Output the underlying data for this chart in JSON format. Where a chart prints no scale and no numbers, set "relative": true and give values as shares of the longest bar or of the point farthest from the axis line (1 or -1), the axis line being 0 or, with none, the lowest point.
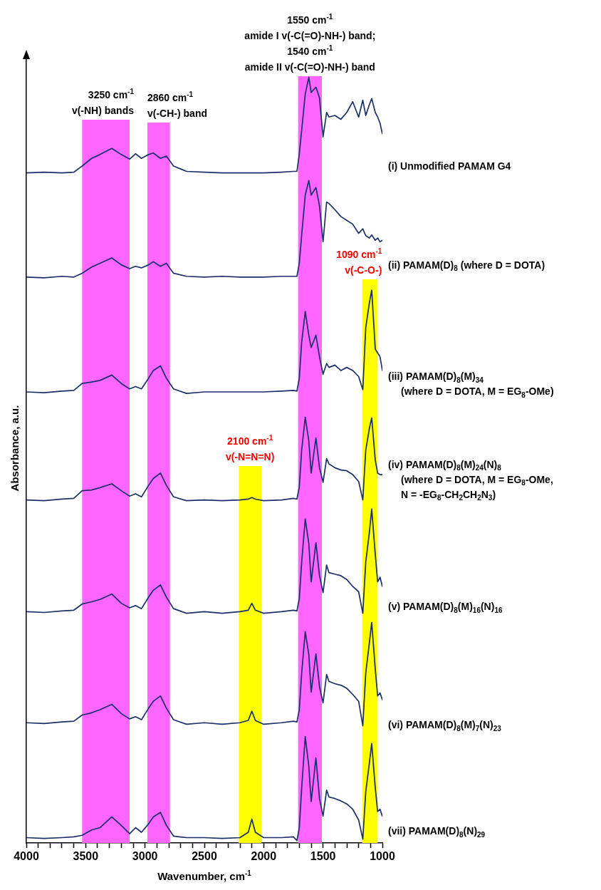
{
  "chart_data": {
    "type": "line",
    "xlabel": "Wavenumber, cm$^{-1}$",
    "ylabel": "Absorbance, a.u.",
    "relative": true,
    "legend": false,
    "marker": "none",
    "line_style": "solid",
    "tick_labels": "x",
    "xlim": [
      4000,
      1000
    ],
    "xticks": [
      4000,
      {
        "value": 3900,
        "label": null
      },
      {
        "value": 3800,
        "label": null
      },
      {
        "value": 3700,
        "label": null
      },
      {
        "value": 3600,
        "label": null
      },
      3500,
      {
        "value": 3400,
        "label": null
      },
      {
        "value": 3300,
        "label": null
      },
      {
        "value": 3200,
        "label": null
      },
      {
        "value": 3100,
        "label": null
      },
      3000,
      {
        "value": 2900,
        "label": null
      },
      {
        "value": 2800,
        "label": null
      },
      {
        "value": 2700,
        "label": null
      },
      {
        "value": 2600,
        "label": null
      },
      2500,
      {
        "value": 2400,
        "label": null
      },
      {
        "value": 2300,
        "label": null
      },
      {
        "value": 2200,
        "label": null
      },
      {
        "value": 2100,
        "label": null
      },
      2000,
      {
        "value": 1900,
        "label": null
      },
      {
        "value": 1800,
        "label": null
      },
      {
        "value": 1700,
        "label": null
      },
      {
        "value": 1600,
        "label": null
      },
      1500,
      {
        "value": 1400,
        "label": null
      },
      {
        "value": 1300,
        "label": null
      },
      {
        "value": 1200,
        "label": null
      },
      {
        "value": 1100,
        "label": null
      },
      1000
    ],
    "x": [
      4000,
      3850,
      3700,
      3600,
      3530,
      3450,
      3380,
      3280,
      3200,
      3130,
      3080,
      3030,
      2970,
      2930,
      2870,
      2820,
      2760,
      2650,
      2500,
      2350,
      2200,
      2130,
      2100,
      2070,
      2000,
      1850,
      1750,
      1720,
      1700,
      1680,
      1650,
      1620,
      1600,
      1560,
      1530,
      1500,
      1470,
      1450,
      1400,
      1350,
      1300,
      1250,
      1200,
      1165,
      1140,
      1110,
      1090,
      1060,
      1040,
      1020,
      1000
    ],
    "series": [
      {
        "name": "(i) Unmodified PAMAM G4",
        "color": "#1b2f6b",
        "values": [
          0.875,
          0.876,
          0.875,
          0.876,
          0.884,
          0.894,
          0.899,
          0.907,
          0.899,
          0.893,
          0.9,
          0.894,
          0.899,
          0.901,
          0.894,
          0.897,
          0.884,
          0.877,
          0.876,
          0.875,
          0.875,
          0.875,
          0.875,
          0.875,
          0.875,
          0.876,
          0.877,
          0.877,
          0.9,
          0.931,
          0.978,
          1.0,
          0.98,
          0.987,
          0.973,
          0.922,
          0.954,
          0.948,
          0.95,
          0.945,
          0.954,
          0.968,
          0.948,
          0.97,
          0.95,
          0.964,
          0.972,
          0.954,
          0.948,
          0.94,
          0.926
        ]
      },
      {
        "name": "(ii) PAMAM(D)$_{8}$ (where D = DOTA)",
        "color": "#1b2f6b",
        "values": [
          0.739,
          0.738,
          0.74,
          0.739,
          0.744,
          0.752,
          0.757,
          0.764,
          0.755,
          0.75,
          0.753,
          0.751,
          0.755,
          0.759,
          0.753,
          0.757,
          0.744,
          0.74,
          0.739,
          0.74,
          0.739,
          0.739,
          0.739,
          0.739,
          0.739,
          0.74,
          0.74,
          0.74,
          0.757,
          0.794,
          0.846,
          0.865,
          0.846,
          0.856,
          0.832,
          0.785,
          0.837,
          0.835,
          0.827,
          0.818,
          0.813,
          0.808,
          0.796,
          0.802,
          0.793,
          0.79,
          0.794,
          0.787,
          0.79,
          0.785,
          0.787
        ]
      },
      {
        "name": "(iii) PAMAM(D)$_{8}$(M)$_{34}$\n(where D = DOTA, M = EG$_{8}$-OMe)",
        "color": "#1b2f6b",
        "values": [
          0.589,
          0.588,
          0.59,
          0.591,
          0.6,
          0.602,
          0.604,
          0.611,
          0.6,
          0.593,
          0.596,
          0.593,
          0.607,
          0.617,
          0.623,
          0.607,
          0.593,
          0.587,
          0.589,
          0.589,
          0.589,
          0.589,
          0.589,
          0.589,
          0.589,
          0.59,
          0.591,
          0.59,
          0.607,
          0.654,
          0.694,
          0.663,
          0.647,
          0.663,
          0.635,
          0.612,
          0.626,
          0.621,
          0.624,
          0.617,
          0.621,
          0.617,
          0.609,
          0.592,
          0.673,
          0.705,
          0.722,
          0.645,
          0.64,
          0.635,
          0.617
        ]
      },
      {
        "name": "(iv) PAMAM(D)$_{8}$(M)$_{24}$(N)$_{8}$\n(where D = DOTA, M = EG$_{8}$-OMe,\nN = -EG$_{8}$-CH$_{2}$CH$_{2}$N$_{3}$)",
        "color": "#1b2f6b",
        "values": [
          0.448,
          0.447,
          0.449,
          0.45,
          0.46,
          0.461,
          0.464,
          0.469,
          0.46,
          0.453,
          0.456,
          0.452,
          0.467,
          0.476,
          0.483,
          0.467,
          0.452,
          0.447,
          0.448,
          0.447,
          0.448,
          0.449,
          0.451,
          0.449,
          0.447,
          0.448,
          0.45,
          0.449,
          0.465,
          0.513,
          0.556,
          0.525,
          0.483,
          0.529,
          0.49,
          0.471,
          0.502,
          0.495,
          0.49,
          0.487,
          0.486,
          0.481,
          0.472,
          0.448,
          0.513,
          0.541,
          0.555,
          0.5,
          0.483,
          0.481,
          0.481
        ]
      },
      {
        "name": "(v) PAMAM(D)$_{8}$(M)$_{16}$(N)$_{16}$",
        "color": "#1b2f6b",
        "values": [
          0.302,
          0.301,
          0.303,
          0.304,
          0.312,
          0.315,
          0.318,
          0.325,
          0.313,
          0.307,
          0.31,
          0.306,
          0.321,
          0.33,
          0.337,
          0.321,
          0.306,
          0.3,
          0.302,
          0.3,
          0.302,
          0.304,
          0.313,
          0.304,
          0.3,
          0.302,
          0.304,
          0.303,
          0.319,
          0.367,
          0.423,
          0.391,
          0.341,
          0.392,
          0.349,
          0.327,
          0.363,
          0.353,
          0.351,
          0.349,
          0.344,
          0.335,
          0.328,
          0.3,
          0.367,
          0.405,
          0.436,
          0.377,
          0.341,
          0.347,
          0.335
        ]
      },
      {
        "name": "(vi) PAMAM(D)$_{8}$(M)$_{7}$(N)$_{23}$",
        "color": "#1b2f6b",
        "values": [
          0.157,
          0.156,
          0.158,
          0.159,
          0.167,
          0.17,
          0.174,
          0.181,
          0.169,
          0.162,
          0.165,
          0.161,
          0.176,
          0.185,
          0.192,
          0.176,
          0.161,
          0.155,
          0.157,
          0.155,
          0.157,
          0.16,
          0.172,
          0.16,
          0.155,
          0.157,
          0.159,
          0.158,
          0.174,
          0.222,
          0.276,
          0.246,
          0.197,
          0.247,
          0.204,
          0.183,
          0.22,
          0.211,
          0.208,
          0.206,
          0.202,
          0.194,
          0.185,
          0.153,
          0.222,
          0.261,
          0.288,
          0.227,
          0.192,
          0.196,
          0.187
        ]
      },
      {
        "name": "(vii) PAMAM(D)$_{8}$(N)$_{29}$",
        "color": "#1b2f6b",
        "values": [
          0.007,
          0.006,
          0.007,
          0.008,
          0.01,
          0.017,
          0.02,
          0.034,
          0.023,
          0.012,
          0.02,
          0.014,
          0.025,
          0.034,
          0.04,
          0.023,
          0.009,
          0.007,
          0.007,
          0.006,
          0.007,
          0.014,
          0.031,
          0.014,
          0.007,
          0.007,
          0.008,
          0.003,
          0.02,
          0.072,
          0.139,
          0.1,
          0.054,
          0.111,
          0.058,
          0.035,
          0.069,
          0.06,
          0.058,
          0.055,
          0.051,
          0.044,
          0.03,
          0.005,
          0.067,
          0.104,
          0.13,
          0.072,
          0.041,
          0.044,
          0.035
        ]
      }
    ],
    "bands": [
      {
        "axis": "x",
        "from": 3530,
        "to": 3130,
        "label": "3250 cm$^{-1}$\nv(-NH) bands",
        "color": "#ff66ff"
      },
      {
        "axis": "x",
        "from": 2980,
        "to": 2790,
        "label": "2860 cm$^{-1}$\nv(-CH-) band",
        "color": "#ff66ff"
      },
      {
        "axis": "x",
        "from": 2210,
        "to": 2020,
        "label": "2100 cm$^{-1}$\nv(-N=N=N)",
        "color": "#ffff00"
      },
      {
        "axis": "x",
        "from": 1710,
        "to": 1510,
        "label": "1550 cm$^{-1}$\namide I v(-C(=O)-NH-) band;\n1540 cm$^{-1}$\namide II v(-C(=O)-NH-) band",
        "color": "#ff66ff"
      },
      {
        "axis": "x",
        "from": 1170,
        "to": 1040,
        "label": "1090 cm$^{-1}$\nv(-C-O-)",
        "color": "#ffff00"
      }
    ]
  }
}
